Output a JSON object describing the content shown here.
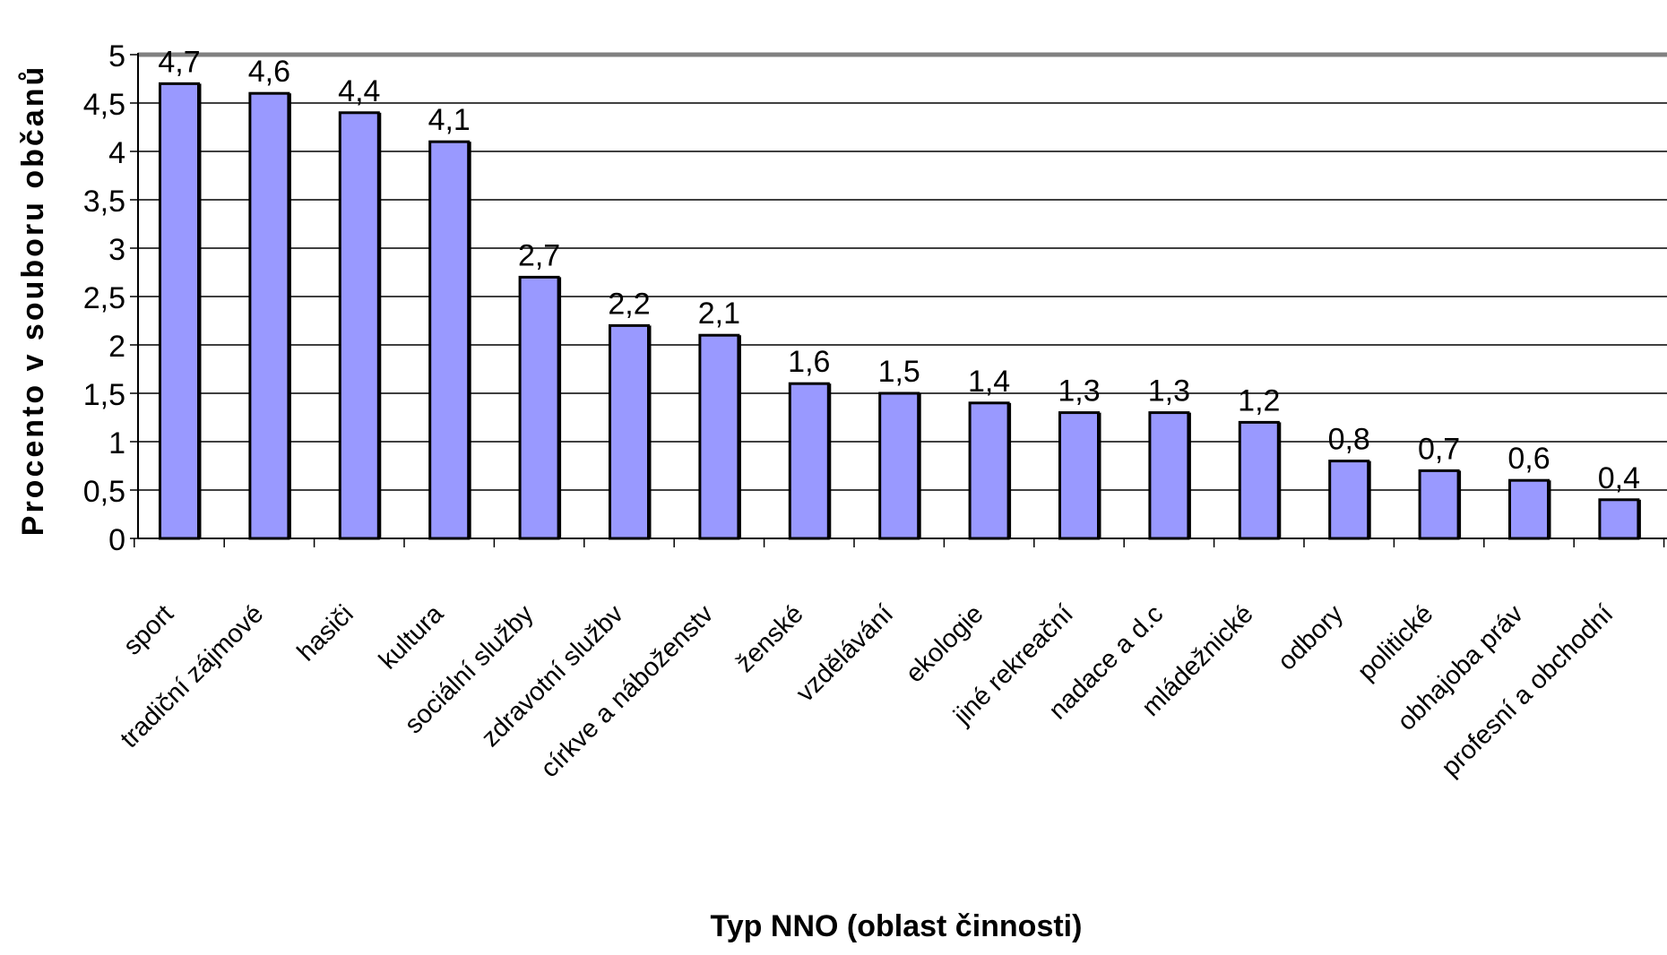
{
  "chart_data": {
    "type": "bar",
    "title": "",
    "xlabel": "Typ NNO (oblast činnosti)",
    "ylabel": "Procento v souboru občanů",
    "ylim": [
      0,
      5
    ],
    "yticks": [
      "0",
      "0,5",
      "1",
      "1,5",
      "2",
      "2,5",
      "3",
      "3,5",
      "4",
      "4,5",
      "5"
    ],
    "grid": true,
    "legend": "none",
    "categories": [
      "sport",
      "tradiční zájmové",
      "hasiči",
      "kultura",
      "sociální služby",
      "zdravotní služby",
      "církve a náboženství",
      "ženské",
      "vzdělávání",
      "ekologie",
      "jiné rekreační",
      "nadace a d.c",
      "mládežnické",
      "odbory",
      "politické",
      "obhajoba práv",
      "profesní a obchodní"
    ],
    "tick_labels": [
      "sport",
      "tradiční zájmové",
      "hasiči",
      "kultura",
      "sociální služby",
      "zdravotní službv",
      "církve a náboženstv",
      "ženské",
      "vzdělávání",
      "ekologie",
      "jiné rekreační",
      "nadace a d.c",
      "mládežnické",
      "odbory",
      "politické",
      "obhajoba práv",
      "profesní a obchodní"
    ],
    "values": [
      4.7,
      4.6,
      4.4,
      4.1,
      2.7,
      2.2,
      2.1,
      1.6,
      1.5,
      1.4,
      1.3,
      1.3,
      1.2,
      0.8,
      0.7,
      0.6,
      0.4
    ],
    "data_labels": [
      "4,7",
      "4,6",
      "4,4",
      "4,1",
      "2,7",
      "2,2",
      "2,1",
      "1,6",
      "1,5",
      "1,4",
      "1,3",
      "1,3",
      "1,2",
      "0,8",
      "0,7",
      "0,6",
      "0,4"
    ],
    "colors": {
      "bar": "#9999ff",
      "bar_edge": "#000000",
      "grid": "#000000",
      "top_line": "#808080"
    }
  }
}
